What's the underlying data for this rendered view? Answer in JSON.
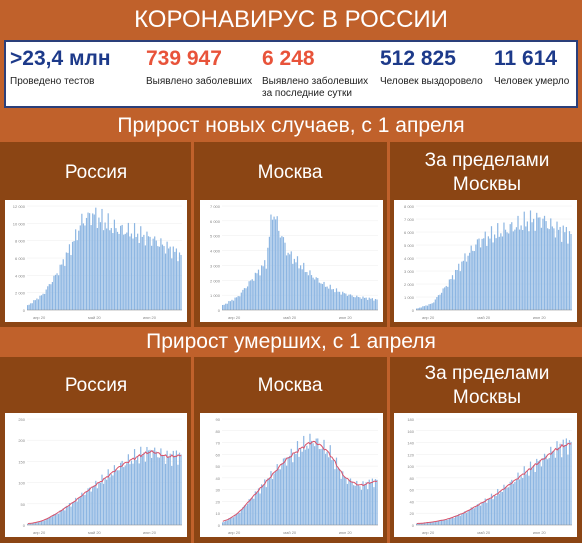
{
  "title": "КОРОНАВИРУС В РОССИИ",
  "stats": [
    {
      "value": ">23,4 млн",
      "label": "Проведено тестов",
      "color": "#1d3a8a"
    },
    {
      "value": "739 947",
      "label": "Выявлено заболевших",
      "color": "#e8533a"
    },
    {
      "value": "6 248",
      "label": "Выявлено заболевших за последние сутки",
      "color": "#e8533a"
    },
    {
      "value": "512 825",
      "label": "Человек выздоровело",
      "color": "#1d3a8a"
    },
    {
      "value": "11 614",
      "label": "Человек умерло",
      "color": "#1d3a8a"
    }
  ],
  "sections": {
    "cases": "Прирост новых случаев, с 1 апреля",
    "deaths": "Прирост умерших, с 1 апреля"
  },
  "regions": {
    "russia": "Россия",
    "moscow": "Москва",
    "outside": "За пределами Москвы"
  },
  "colors": {
    "bar": "#8db6e2",
    "line": "#d9536b",
    "axis": "#888888"
  },
  "chart_data": [
    {
      "type": "bar",
      "name": "cases-russia",
      "ylim": [
        0,
        12000
      ],
      "yticks": [
        0,
        2000,
        4000,
        6000,
        8000,
        10000,
        12000
      ],
      "xticks": [
        "апр 20",
        "май 20",
        "июн 20"
      ],
      "anchors": [
        [
          0,
          500
        ],
        [
          10,
          1800
        ],
        [
          20,
          4500
        ],
        [
          30,
          8000
        ],
        [
          35,
          10200
        ],
        [
          42,
          11000
        ],
        [
          55,
          9500
        ],
        [
          70,
          8800
        ],
        [
          80,
          8200
        ],
        [
          90,
          7200
        ],
        [
          99,
          6300
        ]
      ]
    },
    {
      "type": "bar",
      "name": "cases-moscow",
      "ylim": [
        0,
        7000
      ],
      "yticks": [
        0,
        1000,
        2000,
        3000,
        4000,
        5000,
        6000,
        7000
      ],
      "xticks": [
        "апр 20",
        "май 20",
        "июн 20"
      ],
      "anchors": [
        [
          0,
          300
        ],
        [
          10,
          900
        ],
        [
          20,
          2200
        ],
        [
          28,
          3200
        ],
        [
          32,
          6700
        ],
        [
          36,
          5500
        ],
        [
          42,
          3800
        ],
        [
          55,
          2500
        ],
        [
          65,
          1700
        ],
        [
          75,
          1200
        ],
        [
          85,
          900
        ],
        [
          99,
          700
        ]
      ]
    },
    {
      "type": "bar",
      "name": "cases-outside",
      "ylim": [
        0,
        8000
      ],
      "yticks": [
        0,
        1000,
        2000,
        3000,
        4000,
        5000,
        6000,
        7000,
        8000
      ],
      "xticks": [
        "апр 20",
        "май 20",
        "июн 20"
      ],
      "anchors": [
        [
          0,
          100
        ],
        [
          10,
          500
        ],
        [
          20,
          2000
        ],
        [
          30,
          3800
        ],
        [
          40,
          5300
        ],
        [
          50,
          5800
        ],
        [
          60,
          6300
        ],
        [
          72,
          6800
        ],
        [
          80,
          7000
        ],
        [
          88,
          6300
        ],
        [
          99,
          5800
        ]
      ]
    },
    {
      "type": "bar",
      "name": "deaths-russia",
      "ylim": [
        0,
        250
      ],
      "yticks": [
        0,
        50,
        100,
        150,
        200,
        250
      ],
      "xticks": [
        "апр 20",
        "май 20",
        "июн 20"
      ],
      "anchors": [
        [
          0,
          2
        ],
        [
          10,
          10
        ],
        [
          20,
          30
        ],
        [
          30,
          55
        ],
        [
          40,
          85
        ],
        [
          50,
          110
        ],
        [
          60,
          140
        ],
        [
          70,
          160
        ],
        [
          80,
          175
        ],
        [
          90,
          160
        ],
        [
          99,
          165
        ]
      ]
    },
    {
      "type": "bar",
      "name": "deaths-moscow",
      "ylim": [
        0,
        90
      ],
      "yticks": [
        0,
        10,
        20,
        30,
        40,
        50,
        60,
        70,
        80,
        90
      ],
      "xticks": [
        "апр 20",
        "май 20",
        "июн 20"
      ],
      "anchors": [
        [
          0,
          2
        ],
        [
          10,
          10
        ],
        [
          20,
          25
        ],
        [
          30,
          40
        ],
        [
          40,
          55
        ],
        [
          50,
          65
        ],
        [
          58,
          72
        ],
        [
          68,
          62
        ],
        [
          78,
          40
        ],
        [
          88,
          33
        ],
        [
          99,
          38
        ]
      ]
    },
    {
      "type": "bar",
      "name": "deaths-outside",
      "ylim": [
        0,
        180
      ],
      "yticks": [
        0,
        20,
        40,
        60,
        80,
        100,
        120,
        140,
        160,
        180
      ],
      "xticks": [
        "апр 20",
        "май 20",
        "июн 20"
      ],
      "anchors": [
        [
          0,
          2
        ],
        [
          10,
          5
        ],
        [
          20,
          10
        ],
        [
          30,
          20
        ],
        [
          40,
          35
        ],
        [
          50,
          50
        ],
        [
          60,
          70
        ],
        [
          70,
          90
        ],
        [
          80,
          110
        ],
        [
          90,
          130
        ],
        [
          99,
          140
        ]
      ]
    }
  ]
}
